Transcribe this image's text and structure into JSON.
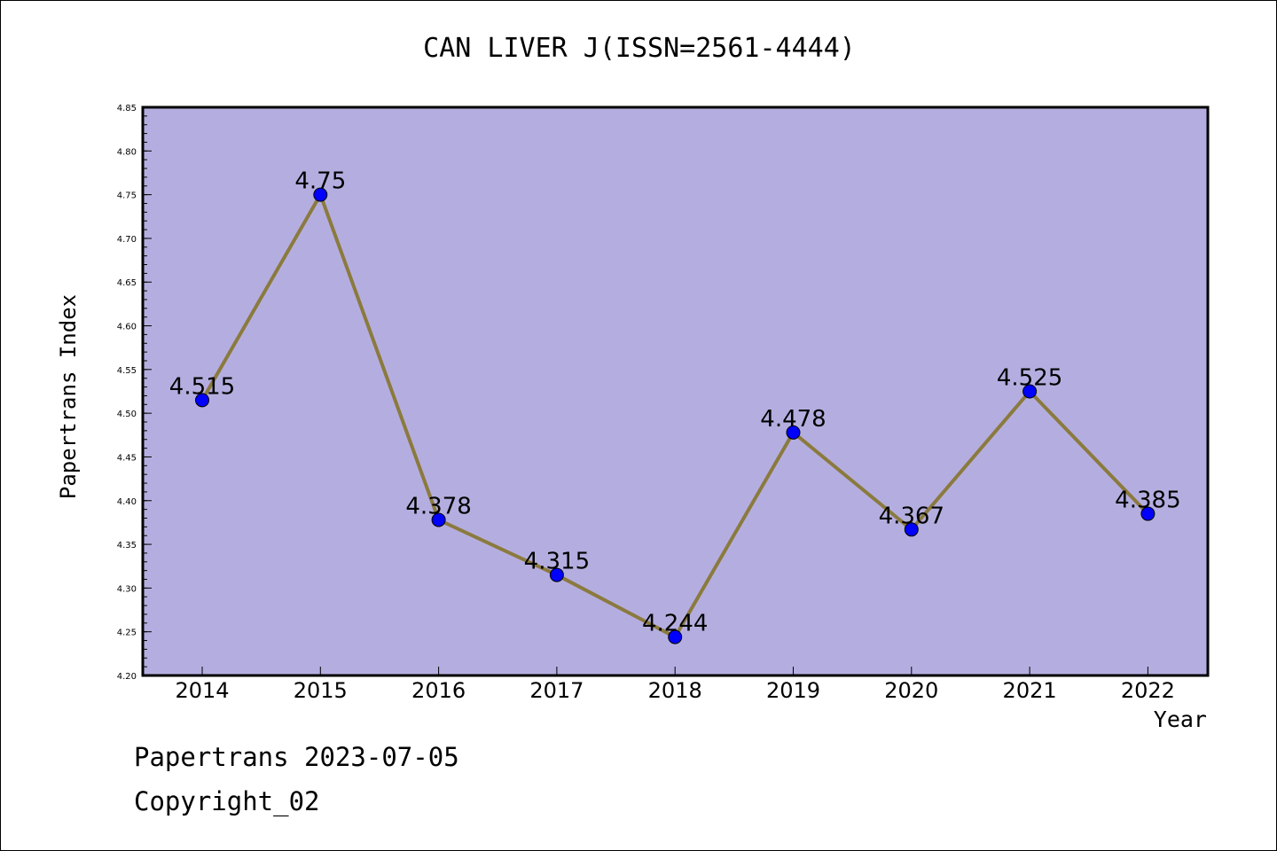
{
  "footer": {
    "date_line": "Papertrans 2023-07-05",
    "copyright_line": "Copyright_02"
  },
  "colors": {
    "plot_background": "#b4aee0",
    "line": "#8b7a3e",
    "marker": "#0000ff",
    "axis": "#000000"
  },
  "chart_data": {
    "type": "line",
    "title": "CAN LIVER J(ISSN=2561-4444)",
    "xlabel": "Year",
    "ylabel": "Papertrans Index",
    "categories": [
      "2014",
      "2015",
      "2016",
      "2017",
      "2018",
      "2019",
      "2020",
      "2021",
      "2022"
    ],
    "series": [
      {
        "values": [
          4.515,
          4.75,
          4.378,
          4.315,
          4.244,
          4.478,
          4.367,
          4.525,
          4.385
        ],
        "value_labels": [
          "4.515",
          "4.75",
          "4.378",
          "4.315",
          "4.244",
          "4.478",
          "4.367",
          "4.525",
          "4.385"
        ]
      }
    ],
    "ylim": [
      4.2,
      4.85
    ],
    "y_major_ticks": [
      "4.20",
      "4.25",
      "4.30",
      "4.35",
      "4.40",
      "4.45",
      "4.50",
      "4.55",
      "4.60",
      "4.65",
      "4.70",
      "4.75",
      "4.80",
      "4.85"
    ],
    "grid": false,
    "marker": "circle"
  }
}
